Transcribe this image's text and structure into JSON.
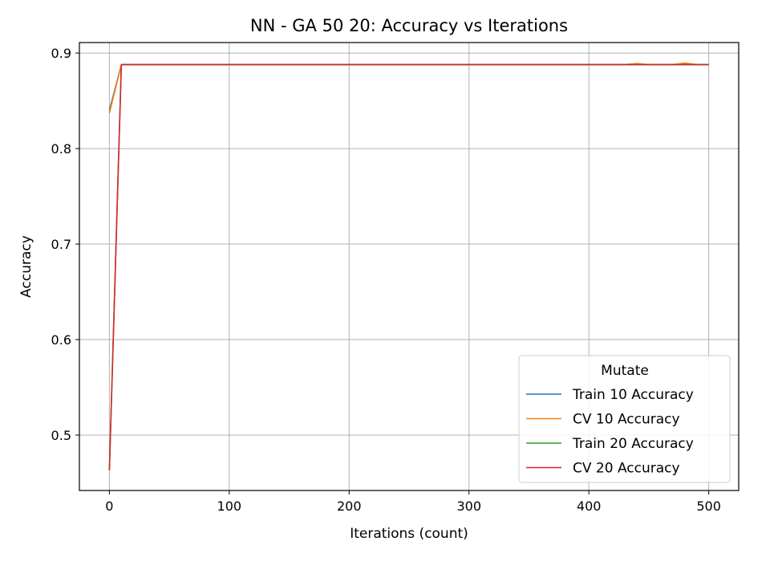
{
  "chart_data": {
    "type": "line",
    "title": "NN - GA 50 20: Accuracy vs Iterations",
    "xlabel": "Iterations (count)",
    "ylabel": "Accuracy",
    "xlim": [
      -25,
      525
    ],
    "ylim": [
      0.442,
      0.911
    ],
    "xticks": [
      0,
      100,
      200,
      300,
      400,
      500
    ],
    "yticks": [
      0.5,
      0.6,
      0.7,
      0.8,
      0.9
    ],
    "grid": true,
    "legend": {
      "title": "Mutate",
      "placement": "lower-right"
    },
    "series": [
      {
        "name": "Train 10 Accuracy",
        "color": "#1f77b4",
        "x": [
          0,
          10,
          20,
          30,
          40,
          50,
          100,
          150,
          200,
          250,
          300,
          350,
          400,
          430,
          440,
          450,
          460,
          470,
          480,
          490,
          500
        ],
        "y": [
          0.84,
          0.888,
          0.888,
          0.888,
          0.888,
          0.888,
          0.888,
          0.888,
          0.888,
          0.888,
          0.888,
          0.888,
          0.888,
          0.888,
          0.888,
          0.888,
          0.888,
          0.888,
          0.888,
          0.888,
          0.888
        ]
      },
      {
        "name": "CV 10 Accuracy",
        "color": "#ff7f0e",
        "x": [
          0,
          10,
          20,
          30,
          40,
          50,
          100,
          150,
          200,
          250,
          300,
          350,
          400,
          430,
          440,
          450,
          460,
          470,
          480,
          490,
          500
        ],
        "y": [
          0.837,
          0.888,
          0.888,
          0.888,
          0.888,
          0.888,
          0.888,
          0.888,
          0.888,
          0.888,
          0.888,
          0.888,
          0.888,
          0.888,
          0.889,
          0.888,
          0.888,
          0.888,
          0.8895,
          0.888,
          0.888
        ]
      },
      {
        "name": "Train 20 Accuracy",
        "color": "#2ca02c",
        "x": [
          0,
          10,
          20,
          30,
          40,
          50,
          100,
          150,
          200,
          250,
          300,
          350,
          400,
          450,
          500
        ],
        "y": [
          0.464,
          0.888,
          0.888,
          0.888,
          0.888,
          0.888,
          0.888,
          0.888,
          0.888,
          0.888,
          0.888,
          0.888,
          0.888,
          0.888,
          0.888
        ]
      },
      {
        "name": "CV 20 Accuracy",
        "color": "#d62728",
        "x": [
          0,
          10,
          20,
          30,
          40,
          50,
          100,
          150,
          200,
          250,
          300,
          350,
          400,
          450,
          500
        ],
        "y": [
          0.463,
          0.888,
          0.888,
          0.888,
          0.888,
          0.888,
          0.888,
          0.888,
          0.888,
          0.888,
          0.888,
          0.888,
          0.888,
          0.888,
          0.888
        ]
      }
    ]
  }
}
